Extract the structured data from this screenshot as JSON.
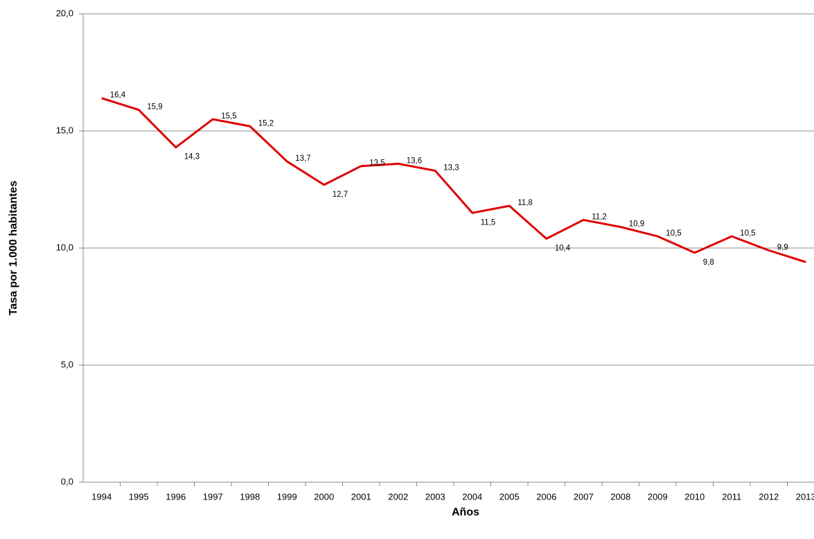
{
  "chart_data": {
    "type": "line",
    "x_label": "Años",
    "y_label": "Tasa por 1.000 habitantes",
    "categories": [
      "1994",
      "1995",
      "1996",
      "1997",
      "1998",
      "1999",
      "2000",
      "2001",
      "2002",
      "2003",
      "2004",
      "2005",
      "2006",
      "2007",
      "2008",
      "2009",
      "2010",
      "2011",
      "2012",
      "2013"
    ],
    "series": [
      {
        "color": "#e00000",
        "values": [
          16.4,
          15.9,
          14.3,
          15.5,
          15.2,
          13.7,
          12.7,
          13.5,
          13.6,
          13.3,
          11.5,
          11.8,
          10.4,
          11.2,
          10.9,
          10.5,
          9.8,
          10.5,
          9.9,
          9.4
        ],
        "value_labels": [
          "16,4",
          "15,9",
          "14,3",
          "15,5",
          "15,2",
          "13,7",
          "12,7",
          "13,5",
          "13,6",
          "13,3",
          "11,5",
          "11,8",
          "10,4",
          "11,2",
          "10,9",
          "10,5",
          "9,8",
          "10,5",
          "9,9",
          null
        ]
      }
    ],
    "ylim": [
      0,
      20
    ],
    "yticks": [
      {
        "value": 0,
        "label": "0,0"
      },
      {
        "value": 5,
        "label": "5,0"
      },
      {
        "value": 10,
        "label": "10,0"
      },
      {
        "value": 15,
        "label": "15,0"
      },
      {
        "value": 20,
        "label": "20,0"
      }
    ],
    "grid": true
  }
}
